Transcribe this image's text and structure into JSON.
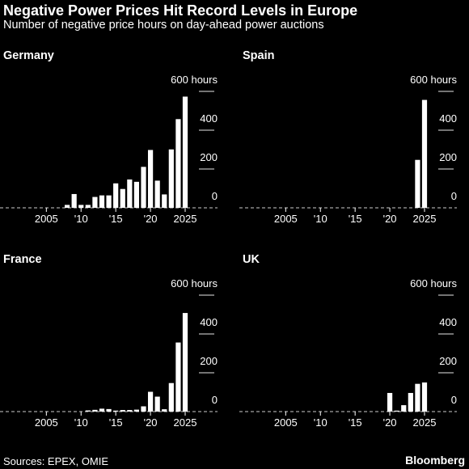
{
  "header": {
    "title": "Negative Power Prices Hit Record Levels in Europe",
    "subtitle": "Number of negative price hours on day-ahead power auctions"
  },
  "footer": {
    "source": "Sources: EPEX, OMIE",
    "brand": "Bloomberg"
  },
  "colors": {
    "background": "#000000",
    "bars": "#ffffff",
    "text": "#ffffff",
    "grid": "#ffffff"
  },
  "chart_data": [
    {
      "type": "bar",
      "title": "Germany",
      "x_range": [
        2001,
        2025
      ],
      "ylim": [
        0,
        600
      ],
      "y_ticks": [
        {
          "value": 0,
          "label": "0"
        },
        {
          "value": 200,
          "label": "200"
        },
        {
          "value": 400,
          "label": "400"
        },
        {
          "value": 600,
          "label": "600 hours"
        }
      ],
      "x_ticks": [
        {
          "value": 2005,
          "label": "2005"
        },
        {
          "value": 2010,
          "label": "'10"
        },
        {
          "value": 2015,
          "label": "'15"
        },
        {
          "value": 2020,
          "label": "'20"
        },
        {
          "value": 2025,
          "label": "2025"
        }
      ],
      "x": [
        2008,
        2009,
        2010,
        2011,
        2012,
        2013,
        2014,
        2015,
        2016,
        2017,
        2018,
        2019,
        2020,
        2021,
        2022,
        2023,
        2024,
        2025
      ],
      "values": [
        15,
        71,
        15,
        15,
        56,
        64,
        64,
        126,
        97,
        146,
        134,
        211,
        298,
        140,
        69,
        301,
        457,
        573
      ]
    },
    {
      "type": "bar",
      "title": "Spain",
      "x_range": [
        2001,
        2025
      ],
      "ylim": [
        0,
        600
      ],
      "y_ticks": [
        {
          "value": 0,
          "label": "0"
        },
        {
          "value": 200,
          "label": "200"
        },
        {
          "value": 400,
          "label": "400"
        },
        {
          "value": 600,
          "label": "600 hours"
        }
      ],
      "x_ticks": [
        {
          "value": 2005,
          "label": "2005"
        },
        {
          "value": 2010,
          "label": "'10"
        },
        {
          "value": 2015,
          "label": "'15"
        },
        {
          "value": 2020,
          "label": "'20"
        },
        {
          "value": 2025,
          "label": "2025"
        }
      ],
      "x": [
        2024,
        2025
      ],
      "values": [
        247,
        556
      ]
    },
    {
      "type": "bar",
      "title": "France",
      "x_range": [
        2001,
        2025
      ],
      "ylim": [
        0,
        600
      ],
      "y_ticks": [
        {
          "value": 0,
          "label": "0"
        },
        {
          "value": 200,
          "label": "200"
        },
        {
          "value": 400,
          "label": "400"
        },
        {
          "value": 600,
          "label": "600 hours"
        }
      ],
      "x_ticks": [
        {
          "value": 2005,
          "label": "2005"
        },
        {
          "value": 2010,
          "label": "'10"
        },
        {
          "value": 2015,
          "label": "'15"
        },
        {
          "value": 2020,
          "label": "'20"
        },
        {
          "value": 2025,
          "label": "2025"
        }
      ],
      "x": [
        2011,
        2012,
        2013,
        2014,
        2015,
        2016,
        2017,
        2018,
        2019,
        2020,
        2021,
        2022,
        2023,
        2024,
        2025
      ],
      "values": [
        6,
        9,
        15,
        13,
        5,
        8,
        8,
        10,
        27,
        102,
        77,
        12,
        147,
        356,
        508
      ]
    },
    {
      "type": "bar",
      "title": "UK",
      "x_range": [
        2001,
        2025
      ],
      "ylim": [
        0,
        600
      ],
      "y_ticks": [
        {
          "value": 0,
          "label": "0"
        },
        {
          "value": 200,
          "label": "200"
        },
        {
          "value": 400,
          "label": "400"
        },
        {
          "value": 600,
          "label": "600 hours"
        }
      ],
      "x_ticks": [
        {
          "value": 2005,
          "label": "2005"
        },
        {
          "value": 2010,
          "label": "'10"
        },
        {
          "value": 2015,
          "label": "'15"
        },
        {
          "value": 2020,
          "label": "'20"
        },
        {
          "value": 2025,
          "label": "2025"
        }
      ],
      "x": [
        2020,
        2021,
        2022,
        2023,
        2024,
        2025
      ],
      "values": [
        96,
        5,
        33,
        96,
        143,
        150
      ]
    }
  ]
}
